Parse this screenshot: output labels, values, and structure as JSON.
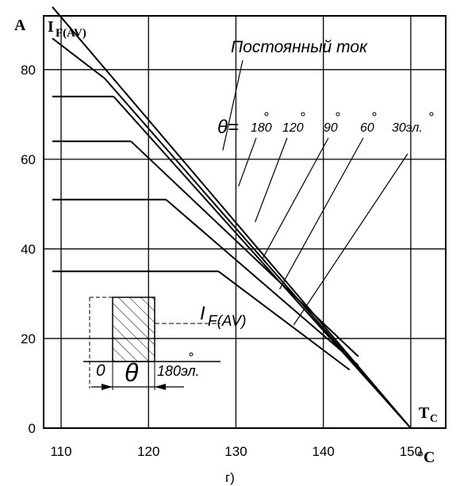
{
  "chart_data": {
    "type": "line",
    "y_unit": "A",
    "y_symbol": "I",
    "y_symbol_sub": "F(AV)",
    "x_symbol": "T",
    "x_symbol_sub": "C",
    "x_unit": "°C",
    "caption": "г)",
    "xlim": [
      108,
      154
    ],
    "ylim": [
      0,
      92
    ],
    "x_ticks": [
      110,
      120,
      130,
      140,
      150
    ],
    "y_ticks": [
      0,
      20,
      40,
      60,
      80
    ],
    "grid": true,
    "dc_label": "Постоянный ток",
    "theta_label": "θ=",
    "angle_labels": [
      "180",
      "120",
      "90",
      "60",
      "30эл."
    ],
    "series": [
      {
        "name": "Постоянный ток",
        "points": [
          [
            109,
            94
          ],
          [
            150,
            0
          ]
        ]
      },
      {
        "name": "180",
        "points": [
          [
            109,
            87
          ],
          [
            115,
            78
          ],
          [
            150,
            0
          ]
        ]
      },
      {
        "name": "120",
        "points": [
          [
            116,
            74
          ],
          [
            150,
            0
          ]
        ]
      },
      {
        "name": "90",
        "points": [
          [
            118,
            64
          ],
          [
            144,
            16
          ]
        ]
      },
      {
        "name": "60",
        "points": [
          [
            122,
            51
          ],
          [
            144,
            14
          ]
        ]
      },
      {
        "name": "30эл.",
        "points": [
          [
            128,
            35
          ],
          [
            143,
            13
          ]
        ]
      }
    ],
    "flat_segments": [
      {
        "name": "120",
        "points": [
          [
            109,
            74
          ],
          [
            116,
            74
          ]
        ]
      },
      {
        "name": "90",
        "points": [
          [
            109,
            64
          ],
          [
            118,
            64
          ]
        ]
      },
      {
        "name": "60",
        "points": [
          [
            109,
            51
          ],
          [
            122,
            51
          ]
        ]
      },
      {
        "name": "30эл.",
        "points": [
          [
            109,
            35
          ],
          [
            128,
            35
          ]
        ]
      }
    ],
    "inset": {
      "current_label": "I",
      "current_sub": "F(AV)",
      "start_label": "0",
      "theta": "θ",
      "end_label": "180эл."
    }
  }
}
